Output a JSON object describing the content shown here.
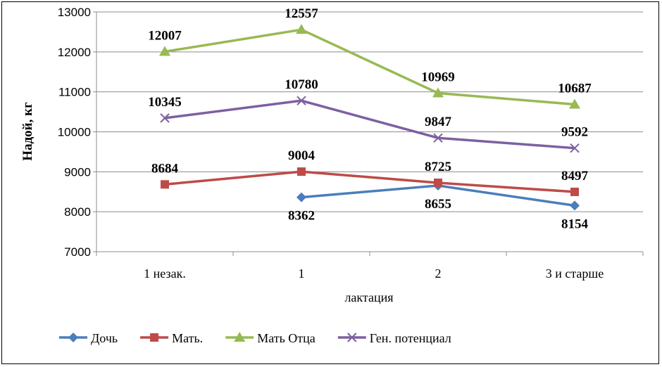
{
  "chart_data": {
    "type": "line",
    "categories": [
      "1 незак.",
      "1",
      "2",
      "3 и старше"
    ],
    "xlabel": "лактация",
    "ylabel": "Надой, кг",
    "ylim": [
      7000,
      13000
    ],
    "yticks": [
      7000,
      8000,
      9000,
      10000,
      11000,
      12000,
      13000
    ],
    "grid": true,
    "legend_position": "bottom",
    "series": [
      {
        "name": "Дочь",
        "values": [
          null,
          8362,
          8655,
          8154
        ],
        "color": "#4A7EBB",
        "marker": "diamond",
        "label_position": "below"
      },
      {
        "name": "Мать.",
        "values": [
          8684,
          9004,
          8725,
          8497
        ],
        "color": "#BE4B48",
        "marker": "square",
        "label_position": "above"
      },
      {
        "name": "Мать Отца",
        "values": [
          12007,
          12557,
          10969,
          10687
        ],
        "color": "#98B954",
        "marker": "triangle",
        "label_position": "above"
      },
      {
        "name": "Ген. потенциал",
        "values": [
          10345,
          10780,
          9847,
          9592
        ],
        "color": "#7D60A0",
        "marker": "x",
        "label_position": "above"
      }
    ]
  }
}
